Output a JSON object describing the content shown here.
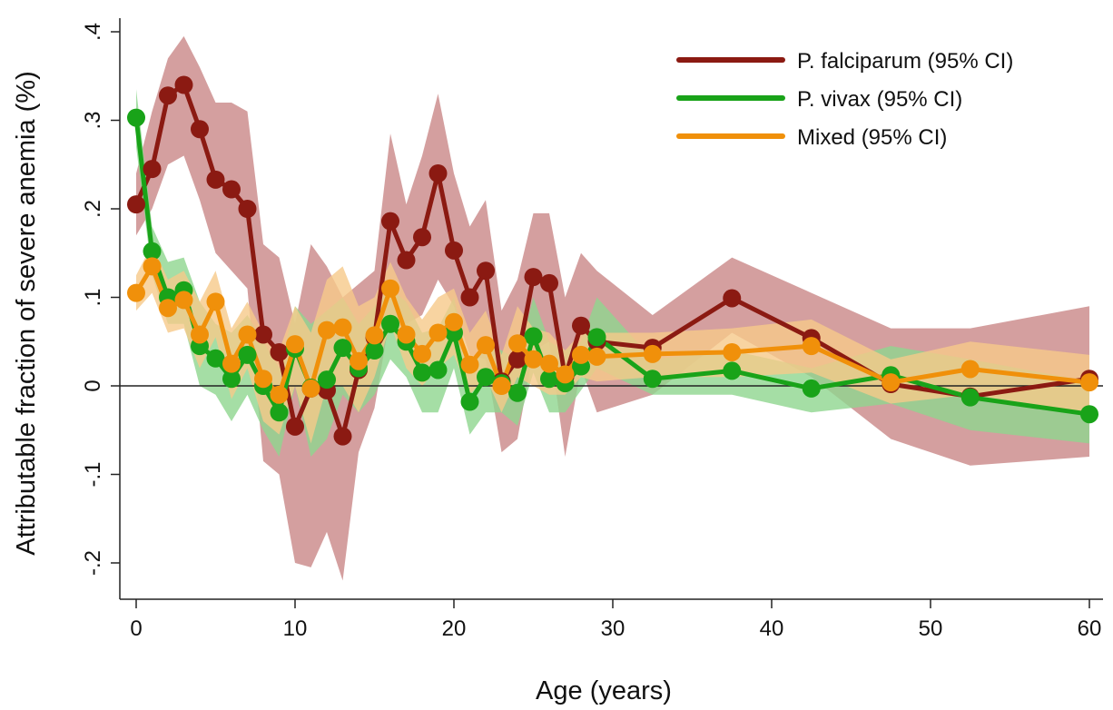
{
  "chart_data": {
    "type": "line",
    "title": "",
    "xlabel": "Age (years)",
    "ylabel": "Attributable fraction of severe anemia (%)",
    "xlim": [
      -1,
      61
    ],
    "ylim": [
      -0.24,
      0.42
    ],
    "xticks": [
      0,
      10,
      20,
      30,
      40,
      50,
      60
    ],
    "xtick_labels": [
      "0",
      "10",
      "20",
      "30",
      "40",
      "50",
      "60"
    ],
    "yticks": [
      0.4,
      0.3,
      0.2,
      0.1,
      0,
      -0.1,
      -0.2
    ],
    "ytick_labels": [
      ".4",
      ".3",
      ".2",
      ".1",
      "0",
      "-.1",
      "-.2"
    ],
    "reference_line_y": 0,
    "grid": false,
    "legend_position": "top-right",
    "series": [
      {
        "name": "P. falciparum (95% CI)",
        "color": "#8b1a12",
        "band_color": "#c98787",
        "x": [
          0,
          1,
          2,
          3,
          4,
          5,
          6,
          7,
          8,
          9,
          10,
          11,
          12,
          13,
          14,
          15,
          16,
          17,
          18,
          19,
          20,
          21,
          22,
          23,
          24,
          25,
          26,
          27,
          28,
          29,
          32.5,
          37.5,
          42.5,
          47.5,
          52.5,
          60
        ],
        "y": [
          0.205,
          0.245,
          0.328,
          0.34,
          0.29,
          0.233,
          0.222,
          0.2,
          0.058,
          0.038,
          -0.046,
          -0.003,
          -0.005,
          -0.057,
          0.018,
          0.055,
          0.186,
          0.142,
          0.168,
          0.24,
          0.153,
          0.1,
          0.13,
          0.005,
          0.03,
          0.123,
          0.116,
          0.01,
          0.068,
          0.05,
          0.043,
          0.099,
          0.054,
          0.002,
          -0.012,
          0.008
        ],
        "lower": [
          0.17,
          0.2,
          0.25,
          0.26,
          0.21,
          0.15,
          0.13,
          0.11,
          -0.085,
          -0.1,
          -0.2,
          -0.205,
          -0.165,
          -0.22,
          -0.075,
          -0.025,
          0.08,
          0.07,
          0.08,
          0.12,
          0.09,
          0.035,
          0.03,
          -0.075,
          -0.06,
          0.04,
          0.05,
          -0.08,
          0.02,
          -0.03,
          -0.01,
          0.06,
          0.01,
          -0.06,
          -0.09,
          -0.08
        ],
        "upper": [
          0.24,
          0.31,
          0.37,
          0.395,
          0.36,
          0.32,
          0.32,
          0.31,
          0.16,
          0.145,
          0.07,
          0.16,
          0.135,
          0.1,
          0.115,
          0.13,
          0.285,
          0.205,
          0.26,
          0.33,
          0.24,
          0.18,
          0.21,
          0.085,
          0.12,
          0.195,
          0.195,
          0.1,
          0.15,
          0.13,
          0.08,
          0.145,
          0.105,
          0.065,
          0.065,
          0.09
        ]
      },
      {
        "name": "P. vivax (95% CI)",
        "color": "#19a319",
        "band_color": "#8fd68f",
        "x": [
          0,
          1,
          2,
          3,
          4,
          5,
          6,
          7,
          8,
          9,
          10,
          11,
          12,
          13,
          14,
          15,
          16,
          17,
          18,
          19,
          20,
          21,
          22,
          23,
          24,
          25,
          26,
          27,
          28,
          29,
          32.5,
          37.5,
          42.5,
          47.5,
          52.5,
          60
        ],
        "y": [
          0.303,
          0.152,
          0.1,
          0.108,
          0.045,
          0.031,
          0.008,
          0.035,
          0.0,
          -0.03,
          0.042,
          -0.002,
          0.007,
          0.043,
          0.02,
          0.04,
          0.07,
          0.05,
          0.015,
          0.018,
          0.06,
          -0.018,
          0.01,
          0.003,
          -0.008,
          0.056,
          0.008,
          0.003,
          0.022,
          0.055,
          0.008,
          0.017,
          -0.003,
          0.012,
          -0.013,
          -0.032
        ],
        "lower": [
          0.27,
          0.125,
          0.07,
          0.07,
          0.0,
          -0.01,
          -0.04,
          -0.01,
          -0.05,
          -0.08,
          0.0,
          -0.08,
          -0.06,
          -0.01,
          -0.03,
          -0.01,
          0.03,
          0.01,
          -0.03,
          -0.03,
          0.02,
          -0.055,
          -0.03,
          -0.03,
          -0.045,
          0.015,
          -0.03,
          -0.03,
          -0.005,
          0.02,
          -0.01,
          -0.01,
          -0.03,
          -0.02,
          -0.05,
          -0.065
        ],
        "upper": [
          0.335,
          0.18,
          0.14,
          0.145,
          0.095,
          0.07,
          0.06,
          0.08,
          0.05,
          0.02,
          0.09,
          0.07,
          0.085,
          0.1,
          0.07,
          0.09,
          0.11,
          0.095,
          0.06,
          0.065,
          0.1,
          0.02,
          0.05,
          0.04,
          0.03,
          0.1,
          0.05,
          0.04,
          0.05,
          0.1,
          0.03,
          0.04,
          0.02,
          0.045,
          0.03,
          0.005
        ]
      },
      {
        "name": "Mixed (95% CI)",
        "color": "#f0900a",
        "band_color": "#f6c98a",
        "x": [
          0,
          1,
          2,
          3,
          4,
          5,
          6,
          7,
          8,
          9,
          10,
          11,
          12,
          13,
          14,
          15,
          16,
          17,
          18,
          19,
          20,
          21,
          22,
          23,
          24,
          25,
          26,
          27,
          28,
          29,
          32.5,
          37.5,
          42.5,
          47.5,
          52.5,
          60
        ],
        "y": [
          0.105,
          0.135,
          0.088,
          0.097,
          0.058,
          0.095,
          0.025,
          0.058,
          0.008,
          -0.01,
          0.047,
          -0.003,
          0.063,
          0.066,
          0.028,
          0.057,
          0.11,
          0.058,
          0.036,
          0.06,
          0.072,
          0.024,
          0.046,
          0.0,
          0.048,
          0.03,
          0.025,
          0.013,
          0.035,
          0.033,
          0.036,
          0.038,
          0.045,
          0.004,
          0.019,
          0.004
        ],
        "lower": [
          0.085,
          0.105,
          0.06,
          0.065,
          0.02,
          0.055,
          -0.015,
          0.02,
          -0.04,
          -0.055,
          0.0,
          -0.065,
          0.0,
          0.0,
          -0.03,
          0.01,
          0.07,
          0.02,
          0.0,
          0.02,
          0.035,
          -0.01,
          0.01,
          -0.03,
          0.01,
          0.0,
          -0.01,
          -0.01,
          0.01,
          0.005,
          0.01,
          0.01,
          0.015,
          -0.02,
          -0.01,
          -0.03
        ],
        "upper": [
          0.125,
          0.16,
          0.12,
          0.13,
          0.095,
          0.13,
          0.065,
          0.095,
          0.06,
          0.04,
          0.09,
          0.06,
          0.12,
          0.135,
          0.09,
          0.1,
          0.14,
          0.1,
          0.075,
          0.1,
          0.11,
          0.06,
          0.085,
          0.035,
          0.09,
          0.065,
          0.06,
          0.04,
          0.06,
          0.06,
          0.06,
          0.065,
          0.075,
          0.03,
          0.05,
          0.035
        ]
      }
    ]
  }
}
